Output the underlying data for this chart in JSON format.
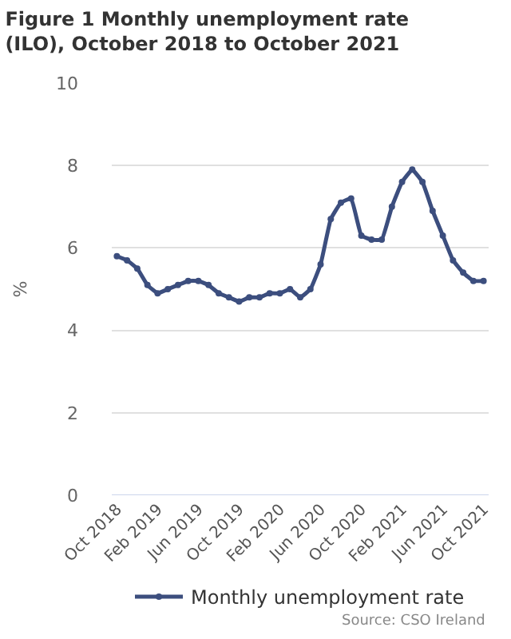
{
  "chart_data": {
    "type": "line",
    "title": "Figure 1 Monthly unemployment rate (ILO), October 2018 to October 2021",
    "ylabel": "%",
    "categories": [
      "Oct 2018",
      null,
      null,
      null,
      "Feb 2019",
      null,
      null,
      null,
      "Jun 2019",
      null,
      null,
      null,
      "Oct 2019",
      null,
      null,
      null,
      "Feb 2020",
      null,
      null,
      null,
      "Jun 2020",
      null,
      null,
      null,
      "Oct 2020",
      null,
      null,
      null,
      "Feb 2021",
      null,
      null,
      null,
      "Jun 2021",
      null,
      null,
      null,
      "Oct 2021"
    ],
    "series": [
      {
        "name": "Monthly unemployment rate",
        "color": "#3c4e7e",
        "values": [
          5.8,
          5.7,
          5.5,
          5.1,
          4.9,
          5.0,
          5.1,
          5.2,
          5.2,
          5.1,
          4.9,
          4.8,
          4.7,
          4.8,
          4.8,
          4.9,
          4.9,
          5.0,
          4.8,
          5.0,
          5.6,
          6.7,
          7.1,
          7.2,
          6.3,
          6.2,
          6.2,
          7.0,
          7.6,
          7.9,
          7.6,
          6.9,
          6.3,
          5.7,
          5.4,
          5.2,
          5.2
        ]
      }
    ],
    "ylim": [
      0,
      10
    ],
    "yticks": [
      0,
      2,
      4,
      6,
      8,
      10
    ],
    "grid": "y",
    "legend": "bottom",
    "marker": "circle",
    "line_style": "solid",
    "annotations": [
      "Source: CSO Ireland"
    ]
  }
}
